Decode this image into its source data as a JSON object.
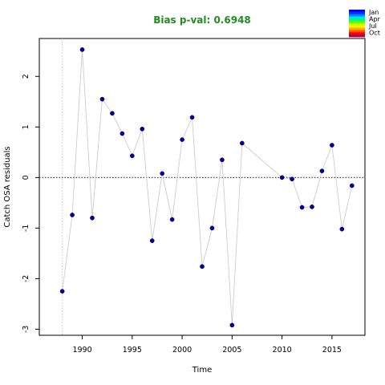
{
  "chart_data": {
    "type": "scatter",
    "title": "Bias p-val: 0.6948",
    "title_color": "#228B22",
    "xlabel": "Time",
    "ylabel": "Catch OSA residuals",
    "xlim": [
      1985.7,
      2018.3
    ],
    "ylim": [
      -3.12,
      2.75
    ],
    "x_ticks": [
      1990,
      1995,
      2000,
      2005,
      2010,
      2015
    ],
    "y_ticks": [
      -3,
      -2,
      -1,
      0,
      1,
      2
    ],
    "x_tick_labels": [
      "1990",
      "1995",
      "2000",
      "2005",
      "2010",
      "2015"
    ],
    "y_tick_labels": [
      "-3",
      "-2",
      "-1",
      "0",
      "1",
      "2"
    ],
    "reference_line_y": 0,
    "vertical_guide_x": 1988,
    "line_color": "#cccccc",
    "point_color": "#0000aa",
    "segments": [
      [
        [
          1988,
          -2.25
        ],
        [
          1989,
          -0.74
        ],
        [
          1990,
          2.53
        ],
        [
          1991,
          -0.8
        ],
        [
          1992,
          1.55
        ],
        [
          1993,
          1.27
        ],
        [
          1994,
          0.87
        ],
        [
          1995,
          0.43
        ],
        [
          1996,
          0.96
        ],
        [
          1997,
          -1.25
        ],
        [
          1998,
          0.08
        ],
        [
          1999,
          -0.83
        ],
        [
          2000,
          0.75
        ],
        [
          2001,
          1.19
        ],
        [
          2002,
          -1.76
        ],
        [
          2003,
          -1.0
        ],
        [
          2004,
          0.35
        ],
        [
          2005,
          -2.92
        ],
        [
          2006,
          0.68
        ]
      ],
      [
        [
          2006,
          0.68
        ],
        [
          2010,
          0.0
        ]
      ],
      [
        [
          2010,
          0.0
        ],
        [
          2011,
          -0.03
        ],
        [
          2012,
          -0.59
        ],
        [
          2013,
          -0.58
        ],
        [
          2014,
          0.13
        ],
        [
          2015,
          0.64
        ],
        [
          2016,
          -1.02
        ],
        [
          2017,
          -0.16
        ]
      ]
    ],
    "points": [
      {
        "x": 1988,
        "y": -2.25
      },
      {
        "x": 1989,
        "y": -0.74
      },
      {
        "x": 1990,
        "y": 2.53
      },
      {
        "x": 1991,
        "y": -0.8
      },
      {
        "x": 1992,
        "y": 1.55
      },
      {
        "x": 1993,
        "y": 1.27
      },
      {
        "x": 1994,
        "y": 0.87
      },
      {
        "x": 1995,
        "y": 0.43
      },
      {
        "x": 1996,
        "y": 0.96
      },
      {
        "x": 1997,
        "y": -1.25
      },
      {
        "x": 1998,
        "y": 0.08
      },
      {
        "x": 1999,
        "y": -0.83
      },
      {
        "x": 2000,
        "y": 0.75
      },
      {
        "x": 2001,
        "y": 1.19
      },
      {
        "x": 2002,
        "y": -1.76
      },
      {
        "x": 2003,
        "y": -1.0
      },
      {
        "x": 2004,
        "y": 0.35
      },
      {
        "x": 2005,
        "y": -2.92
      },
      {
        "x": 2006,
        "y": 0.68
      },
      {
        "x": 2010,
        "y": 0.0
      },
      {
        "x": 2011,
        "y": -0.03
      },
      {
        "x": 2012,
        "y": -0.59
      },
      {
        "x": 2013,
        "y": -0.58
      },
      {
        "x": 2014,
        "y": 0.13
      },
      {
        "x": 2015,
        "y": 0.64
      },
      {
        "x": 2016,
        "y": -1.02
      },
      {
        "x": 2017,
        "y": -0.16
      }
    ],
    "legend": {
      "placement": "top-right",
      "labels": [
        "Jan",
        "Apr",
        "Jul",
        "Oct"
      ],
      "colors": [
        "#0000ff",
        "#0033ff",
        "#0088ff",
        "#00ddff",
        "#00ff66",
        "#55ff00",
        "#ccff00",
        "#ffee00",
        "#ffaa00",
        "#ff5500",
        "#ff0000",
        "#aa0055"
      ]
    },
    "grid": false
  }
}
